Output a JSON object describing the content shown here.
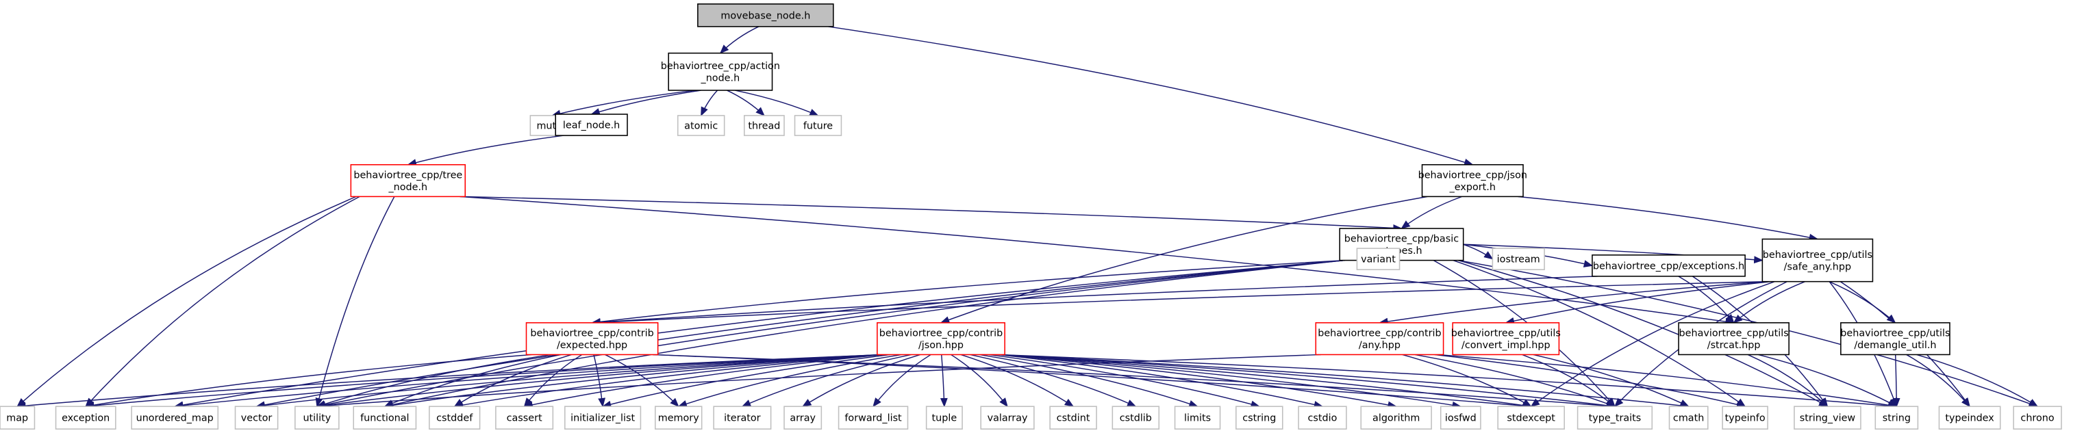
{
  "title": "movebase_node.h include dependency graph",
  "colors": {
    "edge": "#191970",
    "root_fill": "#bfbfbf",
    "documented_border": "#000000",
    "truncated_border": "#ff0000",
    "system_border": "#bfbfbf"
  },
  "nodes": {
    "movebase": {
      "lines": [
        "movebase_node.h"
      ],
      "kind": "root"
    },
    "action_node": {
      "lines": [
        "behaviortree_cpp/action",
        "_node.h"
      ],
      "kind": "doc"
    },
    "mutex": {
      "lines": [
        "mutex"
      ],
      "kind": "sys"
    },
    "leaf_node": {
      "lines": [
        "leaf_node.h"
      ],
      "kind": "doc"
    },
    "atomic": {
      "lines": [
        "atomic"
      ],
      "kind": "sys"
    },
    "thread": {
      "lines": [
        "thread"
      ],
      "kind": "sys"
    },
    "future": {
      "lines": [
        "future"
      ],
      "kind": "sys"
    },
    "tree_node": {
      "lines": [
        "behaviortree_cpp/tree",
        "_node.h"
      ],
      "kind": "red"
    },
    "json_export": {
      "lines": [
        "behaviortree_cpp/json",
        "_export.h"
      ],
      "kind": "doc"
    },
    "basic_types": {
      "lines": [
        "behaviortree_cpp/basic",
        "_types.h"
      ],
      "kind": "doc"
    },
    "variant": {
      "lines": [
        "variant"
      ],
      "kind": "sys"
    },
    "iostream": {
      "lines": [
        "iostream"
      ],
      "kind": "sys"
    },
    "exceptions": {
      "lines": [
        "behaviortree_cpp/exceptions.h"
      ],
      "kind": "doc"
    },
    "safe_any": {
      "lines": [
        "behaviortree_cpp/utils",
        "/safe_any.hpp"
      ],
      "kind": "doc"
    },
    "expected": {
      "lines": [
        "behaviortree_cpp/contrib",
        "/expected.hpp"
      ],
      "kind": "red"
    },
    "json_hpp": {
      "lines": [
        "behaviortree_cpp/contrib",
        "/json.hpp"
      ],
      "kind": "red"
    },
    "any_hpp": {
      "lines": [
        "behaviortree_cpp/contrib",
        "/any.hpp"
      ],
      "kind": "red"
    },
    "convert_impl": {
      "lines": [
        "behaviortree_cpp/utils",
        "/convert_impl.hpp"
      ],
      "kind": "red"
    },
    "strcat": {
      "lines": [
        "behaviortree_cpp/utils",
        "/strcat.hpp"
      ],
      "kind": "doc"
    },
    "demangle": {
      "lines": [
        "behaviortree_cpp/utils",
        "/demangle_util.h"
      ],
      "kind": "doc"
    },
    "map": {
      "lines": [
        "map"
      ],
      "kind": "sys"
    },
    "exception": {
      "lines": [
        "exception"
      ],
      "kind": "sys"
    },
    "unordered_map": {
      "lines": [
        "unordered_map"
      ],
      "kind": "sys"
    },
    "vector": {
      "lines": [
        "vector"
      ],
      "kind": "sys"
    },
    "utility": {
      "lines": [
        "utility"
      ],
      "kind": "sys"
    },
    "functional": {
      "lines": [
        "functional"
      ],
      "kind": "sys"
    },
    "cstddef": {
      "lines": [
        "cstddef"
      ],
      "kind": "sys"
    },
    "cassert": {
      "lines": [
        "cassert"
      ],
      "kind": "sys"
    },
    "initializer_list": {
      "lines": [
        "initializer_list"
      ],
      "kind": "sys"
    },
    "memory": {
      "lines": [
        "memory"
      ],
      "kind": "sys"
    },
    "iterator": {
      "lines": [
        "iterator"
      ],
      "kind": "sys"
    },
    "array": {
      "lines": [
        "array"
      ],
      "kind": "sys"
    },
    "forward_list": {
      "lines": [
        "forward_list"
      ],
      "kind": "sys"
    },
    "tuple": {
      "lines": [
        "tuple"
      ],
      "kind": "sys"
    },
    "valarray": {
      "lines": [
        "valarray"
      ],
      "kind": "sys"
    },
    "cstdint": {
      "lines": [
        "cstdint"
      ],
      "kind": "sys"
    },
    "cstdlib": {
      "lines": [
        "cstdlib"
      ],
      "kind": "sys"
    },
    "limits": {
      "lines": [
        "limits"
      ],
      "kind": "sys"
    },
    "cstring": {
      "lines": [
        "cstring"
      ],
      "kind": "sys"
    },
    "cstdio": {
      "lines": [
        "cstdio"
      ],
      "kind": "sys"
    },
    "algorithm": {
      "lines": [
        "algorithm"
      ],
      "kind": "sys"
    },
    "iosfwd": {
      "lines": [
        "iosfwd"
      ],
      "kind": "sys"
    },
    "stdexcept": {
      "lines": [
        "stdexcept"
      ],
      "kind": "sys"
    },
    "type_traits": {
      "lines": [
        "type_traits"
      ],
      "kind": "sys"
    },
    "cmath": {
      "lines": [
        "cmath"
      ],
      "kind": "sys"
    },
    "typeinfo": {
      "lines": [
        "typeinfo"
      ],
      "kind": "sys"
    },
    "string_view": {
      "lines": [
        "string_view"
      ],
      "kind": "sys"
    },
    "string": {
      "lines": [
        "string"
      ],
      "kind": "sys"
    },
    "typeindex": {
      "lines": [
        "typeindex"
      ],
      "kind": "sys"
    },
    "chrono": {
      "lines": [
        "chrono"
      ],
      "kind": "sys"
    }
  },
  "edges": [
    [
      "movebase",
      "action_node"
    ],
    [
      "movebase",
      "json_export"
    ],
    [
      "action_node",
      "mutex"
    ],
    [
      "action_node",
      "leaf_node"
    ],
    [
      "action_node",
      "atomic"
    ],
    [
      "action_node",
      "thread"
    ],
    [
      "action_node",
      "future"
    ],
    [
      "leaf_node",
      "tree_node"
    ],
    [
      "tree_node",
      "map"
    ],
    [
      "tree_node",
      "exception"
    ],
    [
      "tree_node",
      "utility"
    ],
    [
      "tree_node",
      "basic_types"
    ],
    [
      "tree_node",
      "strcat"
    ],
    [
      "json_export",
      "basic_types"
    ],
    [
      "json_export",
      "safe_any"
    ],
    [
      "json_export",
      "json_hpp"
    ],
    [
      "basic_types",
      "variant"
    ],
    [
      "basic_types",
      "iostream"
    ],
    [
      "basic_types",
      "exceptions"
    ],
    [
      "basic_types",
      "safe_any"
    ],
    [
      "basic_types",
      "chrono"
    ],
    [
      "basic_types",
      "string_view"
    ],
    [
      "basic_types",
      "typeinfo"
    ],
    [
      "basic_types",
      "unordered_map"
    ],
    [
      "basic_types",
      "vector"
    ],
    [
      "basic_types",
      "utility"
    ],
    [
      "basic_types",
      "functional"
    ],
    [
      "basic_types",
      "expected"
    ],
    [
      "basic_types",
      "type_traits"
    ],
    [
      "exceptions",
      "strcat"
    ],
    [
      "exceptions",
      "string_view"
    ],
    [
      "exceptions",
      "expected"
    ],
    [
      "safe_any",
      "strcat"
    ],
    [
      "safe_any",
      "demangle"
    ],
    [
      "safe_any",
      "string"
    ],
    [
      "safe_any",
      "typeindex"
    ],
    [
      "safe_any",
      "any_hpp"
    ],
    [
      "safe_any",
      "convert_impl"
    ],
    [
      "safe_any",
      "expected"
    ],
    [
      "safe_any",
      "type_traits"
    ],
    [
      "safe_any",
      "stdexcept"
    ],
    [
      "expected",
      "exception"
    ],
    [
      "expected",
      "utility"
    ],
    [
      "expected",
      "functional"
    ],
    [
      "expected",
      "cstddef"
    ],
    [
      "expected",
      "cassert"
    ],
    [
      "expected",
      "initializer_list"
    ],
    [
      "expected",
      "memory"
    ],
    [
      "expected",
      "type_traits"
    ],
    [
      "expected",
      "stdexcept"
    ],
    [
      "json_hpp",
      "map"
    ],
    [
      "json_hpp",
      "exception"
    ],
    [
      "json_hpp",
      "unordered_map"
    ],
    [
      "json_hpp",
      "vector"
    ],
    [
      "json_hpp",
      "utility"
    ],
    [
      "json_hpp",
      "functional"
    ],
    [
      "json_hpp",
      "cstddef"
    ],
    [
      "json_hpp",
      "cassert"
    ],
    [
      "json_hpp",
      "initializer_list"
    ],
    [
      "json_hpp",
      "memory"
    ],
    [
      "json_hpp",
      "iterator"
    ],
    [
      "json_hpp",
      "array"
    ],
    [
      "json_hpp",
      "forward_list"
    ],
    [
      "json_hpp",
      "tuple"
    ],
    [
      "json_hpp",
      "valarray"
    ],
    [
      "json_hpp",
      "cstdint"
    ],
    [
      "json_hpp",
      "cstdlib"
    ],
    [
      "json_hpp",
      "limits"
    ],
    [
      "json_hpp",
      "cstring"
    ],
    [
      "json_hpp",
      "cstdio"
    ],
    [
      "json_hpp",
      "algorithm"
    ],
    [
      "json_hpp",
      "iosfwd"
    ],
    [
      "json_hpp",
      "stdexcept"
    ],
    [
      "json_hpp",
      "type_traits"
    ],
    [
      "json_hpp",
      "cmath"
    ],
    [
      "json_hpp",
      "string"
    ],
    [
      "any_hpp",
      "utility"
    ],
    [
      "any_hpp",
      "stdexcept"
    ],
    [
      "any_hpp",
      "type_traits"
    ],
    [
      "any_hpp",
      "typeinfo"
    ],
    [
      "any_hpp",
      "string"
    ],
    [
      "convert_impl",
      "type_traits"
    ],
    [
      "convert_impl",
      "cmath"
    ],
    [
      "strcat",
      "string_view"
    ],
    [
      "strcat",
      "string"
    ],
    [
      "demangle",
      "string"
    ],
    [
      "demangle",
      "typeindex"
    ],
    [
      "demangle",
      "chrono"
    ]
  ]
}
